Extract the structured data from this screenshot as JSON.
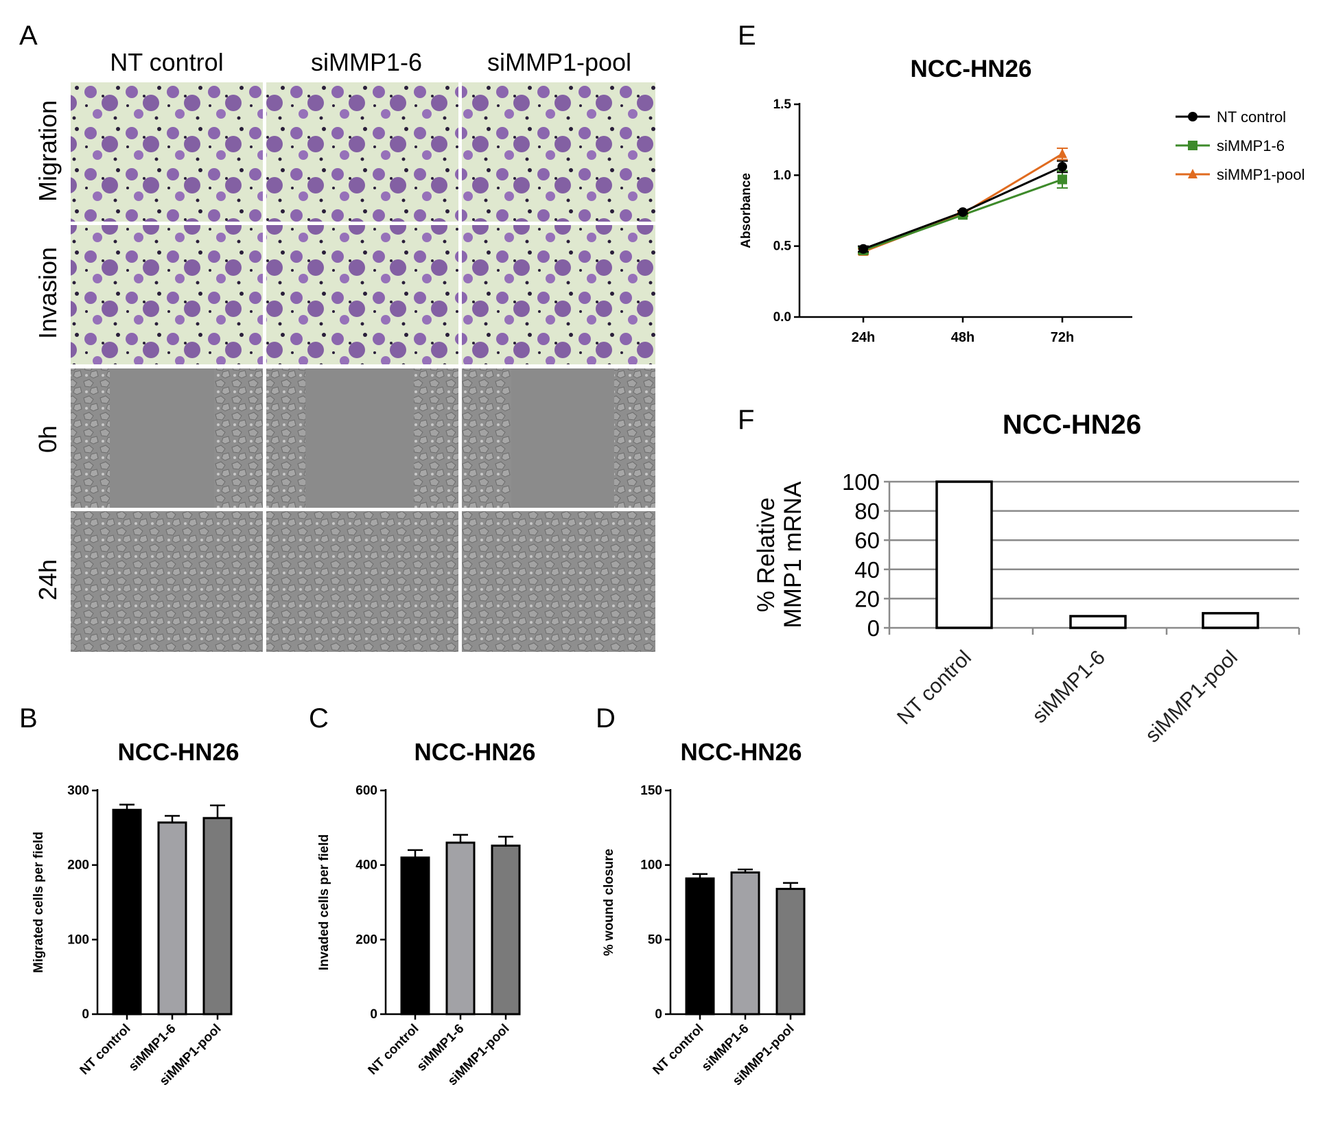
{
  "panel_letters": [
    "A",
    "B",
    "C",
    "D",
    "E",
    "F"
  ],
  "panel_a": {
    "columns": [
      "NT control",
      "siMMP1-6",
      "siMMP1-pool"
    ],
    "rows": [
      "Migration",
      "Invasion",
      "0h",
      "24h"
    ],
    "colors": {
      "stain_bg": "#dfe8cf",
      "stain_cells": "#7d4fa8",
      "phase_bg": "#8e8e8e",
      "phase_cells": "#b4b4b4"
    }
  },
  "chart_data": [
    {
      "panel": "B",
      "type": "bar",
      "title": "NCC-HN26",
      "ylabel": "Migrated cells per field",
      "categories": [
        "NT control",
        "siMMP1-6",
        "siMMP1-pool"
      ],
      "values": [
        274,
        257,
        263
      ],
      "errors": [
        7,
        9,
        17
      ],
      "colors": [
        "#000000",
        "#a2a2a6",
        "#7a7a7a"
      ],
      "ylim": [
        0,
        300
      ],
      "yticks": [
        "0",
        "100",
        "200",
        "300"
      ]
    },
    {
      "panel": "C",
      "type": "bar",
      "title": "NCC-HN26",
      "ylabel": "Invaded cells per field",
      "categories": [
        "NT control",
        "siMMP1-6",
        "siMMP1-pool"
      ],
      "values": [
        420,
        460,
        452
      ],
      "errors": [
        20,
        21,
        24
      ],
      "colors": [
        "#000000",
        "#a2a2a6",
        "#7a7a7a"
      ],
      "ylim": [
        0,
        600
      ],
      "yticks": [
        "0",
        "200",
        "400",
        "600"
      ]
    },
    {
      "panel": "D",
      "type": "bar",
      "title": "NCC-HN26",
      "ylabel": "% wound closure",
      "categories": [
        "NT control",
        "siMMP1-6",
        "siMMP1-pool"
      ],
      "values": [
        91,
        95,
        84
      ],
      "errors": [
        3,
        2,
        4
      ],
      "colors": [
        "#000000",
        "#a2a2a6",
        "#7a7a7a"
      ],
      "ylim": [
        0,
        150
      ],
      "yticks": [
        "0",
        "50",
        "100",
        "150"
      ]
    },
    {
      "panel": "E",
      "type": "line",
      "title": "NCC-HN26",
      "ylabel": "Absorbance",
      "categories": [
        "24h",
        "48h",
        "72h"
      ],
      "ylim": [
        0,
        1.5
      ],
      "yticks": [
        "0.0",
        "0.5",
        "1.0",
        "1.5"
      ],
      "legend_position": "right",
      "series": [
        {
          "name": "NT control",
          "values": [
            0.48,
            0.74,
            1.06
          ],
          "errors": [
            0.02,
            0.01,
            0.04
          ],
          "color": "#000000",
          "marker": "circle"
        },
        {
          "name": "siMMP1-6",
          "values": [
            0.47,
            0.72,
            0.97
          ],
          "errors": [
            0.02,
            0.01,
            0.06
          ],
          "color": "#3d8a2a",
          "marker": "square"
        },
        {
          "name": "siMMP1-pool",
          "values": [
            0.46,
            0.73,
            1.15
          ],
          "errors": [
            0.02,
            0.01,
            0.04
          ],
          "color": "#e06b1f",
          "marker": "triangle"
        }
      ]
    },
    {
      "panel": "F",
      "type": "bar",
      "title": "NCC-HN26",
      "ylabel": [
        "% Relative",
        "MMP1 mRNA"
      ],
      "categories": [
        "NT control",
        "siMMP1-6",
        "siMMP1-pool"
      ],
      "values": [
        100,
        8,
        10
      ],
      "colors": [
        "#ffffff",
        "#ffffff",
        "#ffffff"
      ],
      "ylim": [
        0,
        100
      ],
      "yticks": [
        "0",
        "20",
        "40",
        "60",
        "80",
        "100"
      ],
      "grid": true
    }
  ]
}
